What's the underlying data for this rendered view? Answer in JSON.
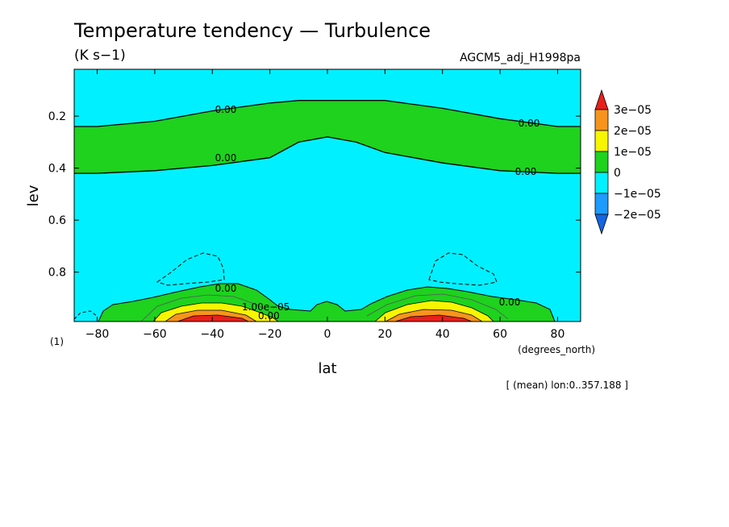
{
  "chart_data": {
    "type": "contour",
    "title": "Temperature tendency — Turbulence",
    "units": "(K s−1)",
    "model": "AGCM5_adj_H1998pa",
    "xlabel": "lat",
    "ylabel": "lev",
    "x_unit_note": "(degrees_north)",
    "y_unit_note": "(1)",
    "footnote": "[ (mean) lon:0..357.188 ]",
    "x_range": [
      -88,
      88
    ],
    "y_range": [
      0.02,
      0.99
    ],
    "y_inverted": true,
    "x_ticks": [
      -80,
      -60,
      -40,
      -20,
      0,
      20,
      40,
      60,
      80
    ],
    "x_tick_labels": [
      "−80",
      "−60",
      "−40",
      "−20",
      "0",
      "20",
      "40",
      "60",
      "80"
    ],
    "y_ticks": [
      0.2,
      0.4,
      0.6,
      0.8
    ],
    "y_tick_labels": [
      "0.2",
      "0.4",
      "0.6",
      "0.8"
    ],
    "colorbar": {
      "levels": [
        "3e−05",
        "2e−05",
        "1e−05",
        "0",
        "−1e−05",
        "−2e−05"
      ],
      "colors": [
        "#e8201a",
        "#f7941d",
        "#f8f500",
        "#1ed21e",
        "#00f0ff",
        "#1e9bff",
        "#1565e0"
      ]
    },
    "contour_labels": [
      "0.00",
      "0.00",
      "0.00",
      "0.00",
      "0.00",
      "0.00",
      "0.00",
      "1.00e−05"
    ],
    "upper_band_top": {
      "lat": [
        -88,
        -80,
        -60,
        -40,
        -20,
        -10,
        0,
        10,
        20,
        40,
        60,
        80,
        88
      ],
      "lev": [
        0.24,
        0.24,
        0.22,
        0.18,
        0.15,
        0.14,
        0.14,
        0.14,
        0.14,
        0.17,
        0.21,
        0.24,
        0.24
      ]
    },
    "upper_band_bottom": {
      "lat": [
        -88,
        -80,
        -60,
        -40,
        -20,
        -10,
        0,
        10,
        20,
        40,
        60,
        80,
        88
      ],
      "lev": [
        0.42,
        0.42,
        0.41,
        0.39,
        0.36,
        0.3,
        0.28,
        0.3,
        0.34,
        0.38,
        0.41,
        0.42,
        0.42
      ]
    }
  }
}
